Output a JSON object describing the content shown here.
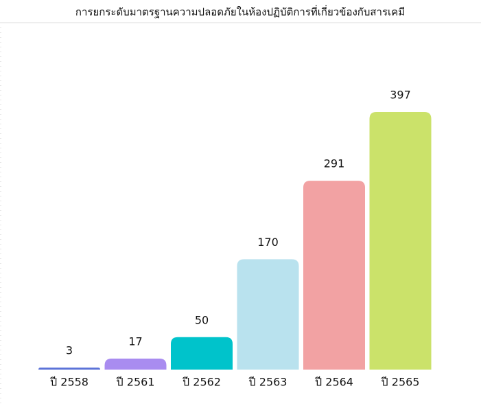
{
  "chart_data": {
    "type": "bar",
    "title": "การยกระดับมาตรฐานความปลอดภัยในห้องปฏิบัติการที่เกี่ยวข้องกับสารเคมี",
    "categories": [
      "ปี 2558",
      "ปี 2561",
      "ปี 2562",
      "ปี 2563",
      "ปี 2564",
      "ปี 2565"
    ],
    "values": [
      3,
      17,
      50,
      170,
      291,
      397
    ],
    "colors": [
      "#5a72d8",
      "#a98cf0",
      "#00c3cb",
      "#b9e2ee",
      "#f2a2a3",
      "#cbe26a"
    ]
  }
}
